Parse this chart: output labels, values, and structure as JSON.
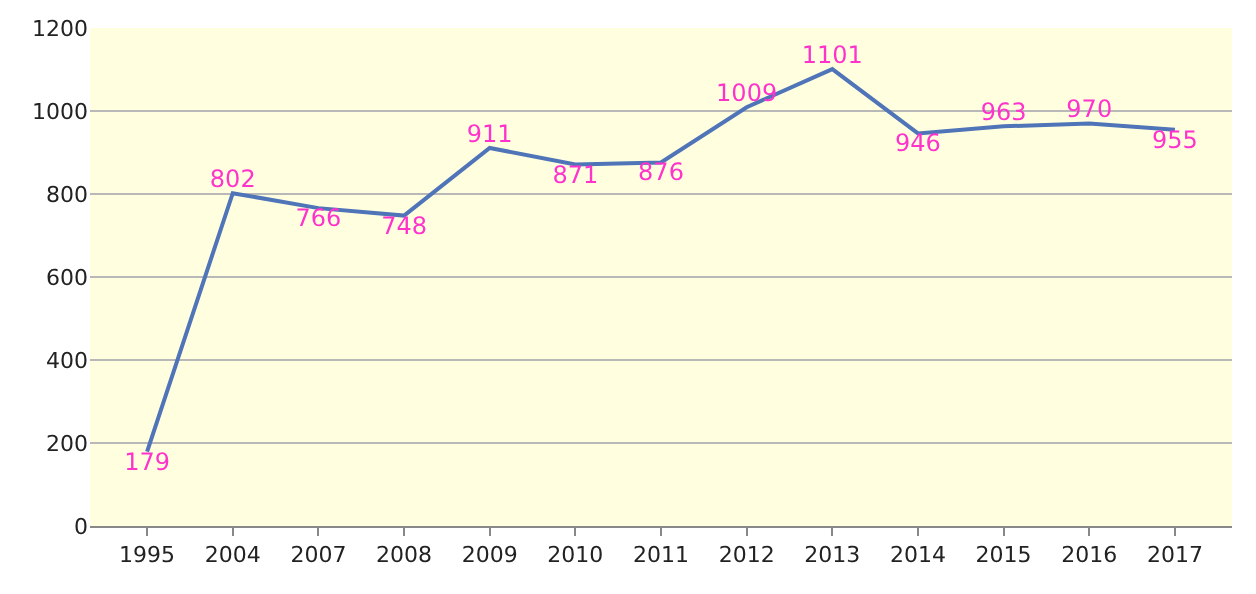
{
  "chart_data": {
    "type": "line",
    "categories": [
      "1995",
      "2004",
      "2007",
      "2008",
      "2009",
      "2010",
      "2011",
      "2012",
      "2013",
      "2014",
      "2015",
      "2016",
      "2017"
    ],
    "series": [
      {
        "color": "#4f74b8",
        "values": [
          179,
          802,
          766,
          748,
          911,
          871,
          876,
          1009,
          1101,
          946,
          963,
          970,
          955
        ]
      }
    ],
    "ylim": [
      0,
      1200
    ],
    "yticks": [
      0,
      200,
      400,
      600,
      800,
      1000,
      1200
    ],
    "grid": "y",
    "data_labels": true,
    "marker": "none",
    "line_style": "solid"
  }
}
